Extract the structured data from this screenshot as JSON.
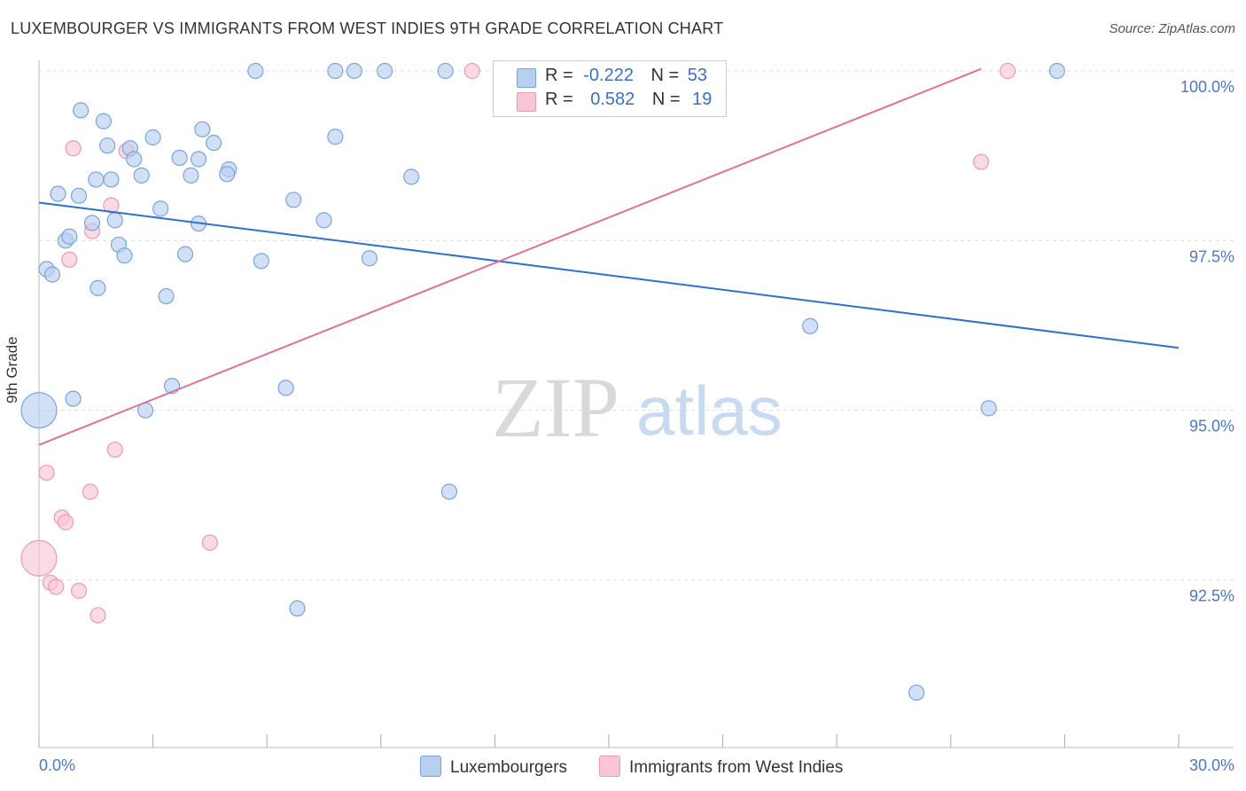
{
  "header": {
    "title": "LUXEMBOURGER VS IMMIGRANTS FROM WEST INDIES 9TH GRADE CORRELATION CHART",
    "source": "Source: ZipAtlas.com"
  },
  "watermark": {
    "zip": "ZIP",
    "atlas": "atlas"
  },
  "legend": {
    "row1": {
      "r_label": "R =",
      "r_value": "-0.222",
      "n_label": "N =",
      "n_value": "53"
    },
    "row2": {
      "r_label": "R =",
      "r_value": "0.582",
      "n_label": "N =",
      "n_value": "19"
    }
  },
  "bottom_legend": {
    "series1": "Luxembourgers",
    "series2": "Immigrants from West Indies"
  },
  "colors": {
    "blue_fill": "#b8d0f0",
    "blue_stroke": "#7aa3dd",
    "blue_line": "#2f6fcf",
    "pink_fill": "#f8c6d4",
    "pink_stroke": "#eb9ab2",
    "pink_line": "#e07098",
    "tick_label": "#4a78c8",
    "grid": "#dddddd"
  },
  "chart_data": {
    "type": "scatter",
    "title": "LUXEMBOURGER VS IMMIGRANTS FROM WEST INDIES 9TH GRADE CORRELATION CHART",
    "xlabel": "",
    "ylabel": "9th Grade",
    "xlim": [
      0,
      30
    ],
    "ylim": [
      90.0,
      100.4
    ],
    "x_tick_labels": [
      "0.0%",
      "30.0%"
    ],
    "y_ticks": [
      92.5,
      95.0,
      97.5,
      100.0
    ],
    "y_tick_labels": [
      "92.5%",
      "95.0%",
      "97.5%",
      "100.0%"
    ],
    "series": [
      {
        "name": "Luxembourgers",
        "R": -0.222,
        "N": 53,
        "trend": {
          "x": [
            0,
            30
          ],
          "y": [
            98.06,
            95.92
          ]
        },
        "points": [
          {
            "x": 5.7,
            "y": 100.0
          },
          {
            "x": 7.8,
            "y": 100.0
          },
          {
            "x": 8.3,
            "y": 100.0
          },
          {
            "x": 9.1,
            "y": 100.0
          },
          {
            "x": 10.7,
            "y": 100.0
          },
          {
            "x": 26.8,
            "y": 100.0
          },
          {
            "x": 1.1,
            "y": 99.42
          },
          {
            "x": 1.7,
            "y": 99.26
          },
          {
            "x": 3.0,
            "y": 99.02
          },
          {
            "x": 4.3,
            "y": 99.14
          },
          {
            "x": 4.6,
            "y": 98.94
          },
          {
            "x": 7.8,
            "y": 99.03
          },
          {
            "x": 1.8,
            "y": 98.9
          },
          {
            "x": 2.4,
            "y": 98.86
          },
          {
            "x": 2.5,
            "y": 98.7
          },
          {
            "x": 3.7,
            "y": 98.72
          },
          {
            "x": 4.2,
            "y": 98.7
          },
          {
            "x": 5.0,
            "y": 98.55
          },
          {
            "x": 1.9,
            "y": 98.4
          },
          {
            "x": 1.5,
            "y": 98.4
          },
          {
            "x": 2.7,
            "y": 98.46
          },
          {
            "x": 4.0,
            "y": 98.46
          },
          {
            "x": 4.95,
            "y": 98.48
          },
          {
            "x": 9.8,
            "y": 98.44
          },
          {
            "x": 0.5,
            "y": 98.19
          },
          {
            "x": 1.05,
            "y": 98.16
          },
          {
            "x": 6.7,
            "y": 98.1
          },
          {
            "x": 3.2,
            "y": 97.97
          },
          {
            "x": 1.4,
            "y": 97.76
          },
          {
            "x": 2.0,
            "y": 97.8
          },
          {
            "x": 4.2,
            "y": 97.75
          },
          {
            "x": 7.5,
            "y": 97.8
          },
          {
            "x": 0.7,
            "y": 97.5
          },
          {
            "x": 0.8,
            "y": 97.56
          },
          {
            "x": 2.1,
            "y": 97.44
          },
          {
            "x": 2.25,
            "y": 97.28
          },
          {
            "x": 3.85,
            "y": 97.3
          },
          {
            "x": 5.85,
            "y": 97.2
          },
          {
            "x": 8.7,
            "y": 97.24
          },
          {
            "x": 0.2,
            "y": 97.08
          },
          {
            "x": 0.35,
            "y": 97.0
          },
          {
            "x": 3.35,
            "y": 96.68
          },
          {
            "x": 20.3,
            "y": 96.24
          },
          {
            "x": 3.5,
            "y": 95.36
          },
          {
            "x": 6.5,
            "y": 95.33
          },
          {
            "x": 0.9,
            "y": 95.17
          },
          {
            "x": 2.8,
            "y": 95.0
          },
          {
            "x": 0.0,
            "y": 95.0
          },
          {
            "x": 25.0,
            "y": 95.03
          },
          {
            "x": 10.8,
            "y": 93.8
          },
          {
            "x": 6.8,
            "y": 92.08
          },
          {
            "x": 23.1,
            "y": 90.84
          },
          {
            "x": 1.55,
            "y": 96.8
          }
        ]
      },
      {
        "name": "Immigrants from West Indies",
        "R": 0.582,
        "N": 19,
        "trend": {
          "x": [
            0,
            24.8
          ],
          "y": [
            94.49,
            100.03
          ]
        },
        "points": [
          {
            "x": 11.4,
            "y": 100.0
          },
          {
            "x": 25.5,
            "y": 100.0
          },
          {
            "x": 0.9,
            "y": 98.86
          },
          {
            "x": 2.3,
            "y": 98.82
          },
          {
            "x": 24.8,
            "y": 98.66
          },
          {
            "x": 1.9,
            "y": 98.02
          },
          {
            "x": 1.4,
            "y": 97.64
          },
          {
            "x": 0.8,
            "y": 97.22
          },
          {
            "x": 2.0,
            "y": 94.42
          },
          {
            "x": 0.2,
            "y": 94.08
          },
          {
            "x": 1.35,
            "y": 93.8
          },
          {
            "x": 0.6,
            "y": 93.42
          },
          {
            "x": 0.7,
            "y": 93.35
          },
          {
            "x": 4.5,
            "y": 93.05
          },
          {
            "x": 0.0,
            "y": 92.82
          },
          {
            "x": 0.3,
            "y": 92.46
          },
          {
            "x": 0.45,
            "y": 92.4
          },
          {
            "x": 1.05,
            "y": 92.34
          },
          {
            "x": 1.55,
            "y": 91.98
          }
        ]
      }
    ]
  }
}
